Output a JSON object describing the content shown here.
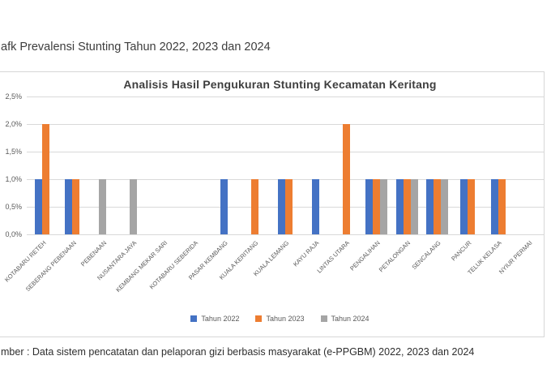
{
  "header": {
    "title": "afk Prevalensi Stunting Tahun 2022, 2023 dan 2024"
  },
  "footer": {
    "source": "mber : Data sistem pencatatan dan pelaporan gizi berbasis masyarakat (e-PPGBM) 2022, 2023 dan 2024"
  },
  "chart_data": {
    "type": "bar",
    "title": "Analisis Hasil Pengukuran Stunting Kecamatan Keritang",
    "categories": [
      "KOTABARU RETEH",
      "SEBERANG PEBENAAN",
      "PEBENAAN",
      "NUSANTARA JAYA",
      "KEMBANG MEKAR SARI",
      "KOTABARU SEBERIDA",
      "PASAR KEMBANG",
      "KUALA KERITANG",
      "KUALA LEMANG",
      "KAYU RAJA",
      "LINTAS UTARA",
      "PENGALIHAN",
      "PETALONGAN",
      "SENCALANG",
      "PANCUR",
      "TELUK KELASA",
      "NYIUR PERMAI"
    ],
    "series": [
      {
        "name": "Tahun 2022",
        "color": "#4472C4",
        "values": [
          1.0,
          1.0,
          0,
          0,
          0,
          0,
          1.0,
          0,
          1.0,
          1.0,
          0,
          1.0,
          1.0,
          1.0,
          1.0,
          1.0,
          0
        ]
      },
      {
        "name": "Tahun 2023",
        "color": "#ED7D31",
        "values": [
          2.0,
          1.0,
          0,
          0,
          0,
          0,
          0,
          1.0,
          1.0,
          0,
          2.0,
          1.0,
          1.0,
          1.0,
          1.0,
          1.0,
          0
        ]
      },
      {
        "name": "Tahun 2024",
        "color": "#A5A5A5",
        "values": [
          0,
          0,
          1.0,
          1.0,
          0,
          0,
          0,
          0,
          0,
          0,
          0,
          1.0,
          1.0,
          1.0,
          0,
          0,
          0
        ]
      }
    ],
    "xlabel": "",
    "ylabel": "",
    "ylim": [
      0,
      2.5
    ],
    "ytick_step": 0.5,
    "ytick_labels": [
      "0,0%",
      "0,5%",
      "1,0%",
      "1,5%",
      "2,0%",
      "2,5%"
    ],
    "grid": true,
    "legend_position": "bottom-center"
  }
}
